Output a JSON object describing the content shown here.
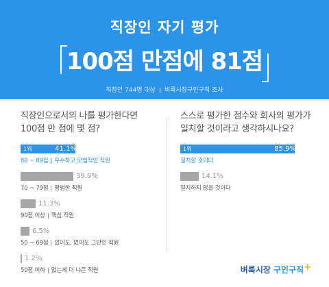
{
  "header": {
    "title": "직장인 자기 평가",
    "headline": "100점 만점에 81점",
    "source_part1": "직장인 744명 대상",
    "source_part2": "벼룩시장구인구직 조사"
  },
  "colors": {
    "header_bg": "#2b93e8",
    "primary": "#2b93e8",
    "secondary": "#a6a6a6"
  },
  "chart_data": [
    {
      "type": "bar",
      "title": "직장인으로서의 나를 평가한다면 100점 만 점에 몇 점?",
      "unit": "%",
      "items": [
        {
          "rank": "1위",
          "value": 41.1,
          "label_score": "80 ~ 89점",
          "label_desc": "우수하고 모범적인 직원",
          "highlight": true
        },
        {
          "rank": "",
          "value": 39.9,
          "label_score": "70 ~ 79점",
          "label_desc": "평범한 직원",
          "highlight": false
        },
        {
          "rank": "",
          "value": 11.3,
          "label_score": "90점 이상",
          "label_desc": "핵심 직원",
          "highlight": false
        },
        {
          "rank": "",
          "value": 6.5,
          "label_score": "50 ~ 69점",
          "label_desc": "있어도, 없어도 그만인 직원",
          "highlight": false
        },
        {
          "rank": "",
          "value": 1.2,
          "label_score": "50점 이하",
          "label_desc": "없는게 더 나은 직원",
          "highlight": false
        }
      ]
    },
    {
      "type": "bar",
      "title": "스스로 평가한 점수와 회사의 평가가 일치할 것이라고 생각하시나요?",
      "unit": "%",
      "items": [
        {
          "rank": "1위",
          "value": 85.9,
          "label": "일치할 것이다",
          "highlight": true
        },
        {
          "rank": "",
          "value": 14.1,
          "label": "일치하지 않을 것이다",
          "highlight": false
        }
      ]
    }
  ],
  "left_panel": {
    "question_line1": "직장인으로서의 나를 평가한다면",
    "question_line2": "100점 만 점에 몇 점?"
  },
  "right_panel": {
    "question_line1": "스스로 평가한 점수와 회사의 평가가",
    "question_line2": "일치할 것이라고 생각하시나요?"
  },
  "logo": {
    "part1": "벼룩시장",
    "part2": "구인구직",
    "plus": "+"
  }
}
